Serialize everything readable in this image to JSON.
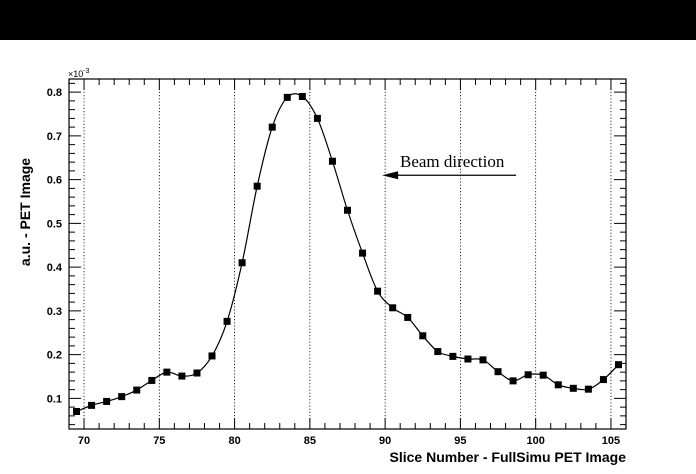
{
  "chart_data": {
    "type": "line",
    "title": "",
    "xlabel": "Slice Number - FullSimu PET Image",
    "ylabel": "a.u. - PET Image",
    "y_multiplier": "×10",
    "y_multiplier_exp": "-3",
    "xlim": [
      69,
      106
    ],
    "ylim": [
      0.03,
      0.83
    ],
    "x_ticks": [
      70,
      75,
      80,
      85,
      90,
      95,
      100,
      105
    ],
    "x_tick_labels": [
      "70",
      "75",
      "80",
      "85",
      "90",
      "95",
      "100",
      "105"
    ],
    "y_ticks": [
      0.1,
      0.2,
      0.3,
      0.4,
      0.5,
      0.6,
      0.7,
      0.8
    ],
    "y_tick_labels": [
      "0.1",
      "0.2",
      "0.3",
      "0.4",
      "0.5",
      "0.6",
      "0.7",
      "0.8"
    ],
    "grid": "vertical dotted",
    "marker": "square",
    "colors": {
      "line": "#000000",
      "marker": "#000000",
      "background": "#ffffff",
      "top_bar": "#000000"
    },
    "annotation": {
      "text": "Beam direction",
      "arrow": "left",
      "x_start": 98.7,
      "x_end": 89.8,
      "y": 0.61
    },
    "series": [
      {
        "x": [
          69.5,
          70.5,
          71.5,
          72.5,
          73.5,
          74.5,
          75.5,
          76.5,
          77.5,
          78.5,
          79.5,
          80.5,
          81.5,
          82.5,
          83.5,
          84.5,
          85.5,
          86.5,
          87.5,
          88.5,
          89.5,
          90.5,
          91.5,
          92.5,
          93.5,
          94.5,
          95.5,
          96.5,
          97.5,
          98.5,
          99.5,
          100.5,
          101.5,
          102.5,
          103.5,
          104.5,
          105.5
        ],
        "values": [
          0.07,
          0.084,
          0.093,
          0.104,
          0.119,
          0.141,
          0.16,
          0.151,
          0.158,
          0.197,
          0.276,
          0.41,
          0.585,
          0.72,
          0.788,
          0.79,
          0.74,
          0.642,
          0.53,
          0.432,
          0.345,
          0.307,
          0.285,
          0.243,
          0.207,
          0.196,
          0.19,
          0.188,
          0.161,
          0.14,
          0.154,
          0.153,
          0.131,
          0.123,
          0.121,
          0.143,
          0.177
        ]
      }
    ]
  }
}
